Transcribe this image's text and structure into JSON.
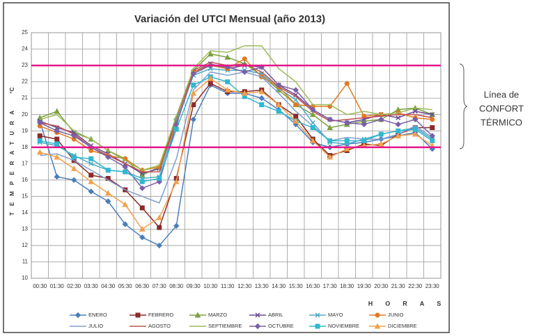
{
  "chart_data": {
    "type": "line",
    "title": "Variación del UTCI Mensual (año 2013)",
    "ylabel": "TEMPERATURA",
    "yunit": "°C",
    "xlabel": "HORAS",
    "categories": [
      "00:30",
      "01:30",
      "02:30",
      "03:30",
      "04:30",
      "05:30",
      "06:30",
      "07:30",
      "08:30",
      "09:30",
      "10:30",
      "11:30",
      "12:30",
      "13:30",
      "14:30",
      "15:30",
      "16:30",
      "17:30",
      "18:30",
      "19:30",
      "20:30",
      "21:30",
      "22:30",
      "23:30"
    ],
    "ylim": [
      10,
      25
    ],
    "yticks": [
      10,
      11,
      12,
      13,
      14,
      15,
      16,
      17,
      18,
      19,
      20,
      21,
      22,
      23,
      24,
      25
    ],
    "grid": true,
    "reference_lines": [
      {
        "value": 23,
        "color": "#e6168a"
      },
      {
        "value": 18,
        "color": "#e6168a"
      }
    ],
    "annotation": [
      "Línea de",
      "CONFORT",
      "TÉRMICO"
    ],
    "series": [
      {
        "name": "ENERO",
        "color": "#4a7ebb",
        "marker": "diamond",
        "values": [
          19.6,
          16.2,
          16.0,
          15.3,
          14.7,
          13.3,
          12.5,
          12.0,
          13.2,
          19.7,
          21.8,
          21.3,
          21.3,
          21.0,
          20.3,
          19.4,
          18.3,
          18.0,
          18.2,
          18.3,
          18.5,
          18.7,
          18.9,
          17.9
        ]
      },
      {
        "name": "FEBRERO",
        "color": "#8b2a2a",
        "marker": "square",
        "values": [
          18.7,
          18.5,
          17.2,
          16.3,
          16.1,
          15.4,
          14.3,
          13.1,
          16.1,
          20.6,
          21.9,
          21.4,
          21.4,
          21.5,
          20.6,
          19.9,
          18.5,
          17.5,
          17.8,
          18.2,
          18.1,
          18.8,
          19.2,
          19.2
        ]
      },
      {
        "name": "MARZO",
        "color": "#7ba03f",
        "marker": "triangle",
        "values": [
          19.8,
          20.2,
          18.9,
          18.5,
          17.8,
          17.3,
          16.3,
          16.8,
          19.8,
          22.7,
          23.7,
          23.5,
          23.1,
          22.4,
          21.5,
          20.6,
          20.0,
          19.2,
          19.4,
          19.6,
          19.7,
          20.3,
          20.4,
          20.0
        ]
      },
      {
        "name": "ABRIL",
        "color": "#6a4c93",
        "marker": "x",
        "values": [
          19.6,
          19.2,
          18.9,
          18.1,
          17.6,
          17.0,
          16.4,
          16.7,
          19.5,
          22.6,
          23.1,
          22.8,
          23.0,
          22.9,
          21.8,
          21.2,
          20.3,
          19.7,
          19.5,
          19.7,
          20.0,
          19.8,
          20.2,
          20.0
        ]
      },
      {
        "name": "MAYO",
        "color": "#4bacc6",
        "marker": "x",
        "values": [
          18.3,
          18.1,
          17.5,
          17.0,
          16.6,
          16.5,
          16.1,
          16.2,
          19.6,
          22.4,
          22.8,
          22.7,
          22.7,
          22.5,
          21.6,
          20.9,
          19.5,
          18.3,
          18.2,
          18.5,
          18.8,
          19.0,
          19.2,
          18.5
        ]
      },
      {
        "name": "JUNIO",
        "color": "#e07b22",
        "marker": "circle",
        "values": [
          19.3,
          18.9,
          18.5,
          17.8,
          17.5,
          17.3,
          16.6,
          16.8,
          19.4,
          22.6,
          23.0,
          22.8,
          23.4,
          22.3,
          21.7,
          20.6,
          20.5,
          20.5,
          21.9,
          19.9,
          20.0,
          20.1,
          19.8,
          19.7
        ]
      },
      {
        "name": "JULIO",
        "color": "#7f9fd0",
        "marker": "none",
        "values": [
          17.5,
          17.6,
          17.2,
          16.6,
          16.0,
          15.4,
          15.0,
          14.6,
          17.3,
          21.5,
          22.6,
          22.4,
          22.6,
          22.3,
          21.3,
          20.2,
          19.3,
          18.4,
          18.6,
          18.5,
          18.5,
          18.8,
          19.3,
          18.6
        ]
      },
      {
        "name": "AGOSTO",
        "color": "#c0504d",
        "marker": "none",
        "values": [
          19.5,
          19.3,
          18.8,
          18.0,
          17.5,
          17.0,
          16.5,
          16.5,
          19.8,
          22.7,
          23.2,
          23.0,
          23.1,
          22.6,
          21.7,
          21.1,
          20.2,
          19.6,
          19.7,
          19.8,
          19.9,
          20.0,
          20.0,
          19.8
        ]
      },
      {
        "name": "SEPTIEMBRE",
        "color": "#9bbb59",
        "marker": "none",
        "values": [
          19.7,
          20.0,
          19.0,
          18.5,
          17.8,
          17.2,
          16.6,
          16.9,
          19.9,
          22.8,
          23.9,
          23.8,
          24.2,
          24.2,
          22.8,
          22.0,
          20.6,
          20.6,
          20.0,
          20.2,
          20.0,
          20.1,
          20.4,
          20.3
        ]
      },
      {
        "name": "OCTUBRE",
        "color": "#7a5fa8",
        "marker": "diamond",
        "values": [
          19.5,
          19.0,
          18.7,
          18.0,
          17.4,
          16.8,
          15.5,
          15.9,
          19.4,
          22.5,
          23.0,
          22.9,
          22.6,
          22.9,
          21.8,
          21.5,
          20.3,
          19.7,
          19.5,
          19.4,
          19.7,
          19.4,
          19.7,
          18.7
        ]
      },
      {
        "name": "NOVIEMBRE",
        "color": "#31b7d0",
        "marker": "square",
        "values": [
          18.4,
          18.2,
          17.4,
          17.3,
          16.6,
          16.5,
          15.9,
          16.1,
          19.1,
          21.8,
          22.3,
          22.0,
          21.1,
          20.6,
          20.2,
          19.6,
          19.2,
          18.4,
          18.4,
          18.4,
          18.8,
          19.0,
          19.1,
          18.4
        ]
      },
      {
        "name": "DICIEMBRE",
        "color": "#f2a04b",
        "marker": "triangle",
        "values": [
          17.7,
          17.4,
          16.7,
          15.9,
          15.2,
          14.5,
          13.0,
          13.7,
          15.9,
          21.3,
          22.2,
          21.5,
          21.3,
          21.4,
          20.6,
          19.6,
          18.4,
          17.4,
          17.9,
          18.1,
          18.2,
          18.7,
          18.8,
          18.1
        ]
      }
    ]
  }
}
